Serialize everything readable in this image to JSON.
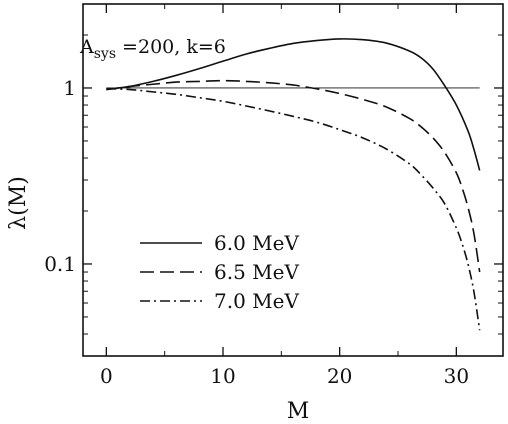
{
  "chart_data": {
    "type": "line",
    "annotation_parts": {
      "main": "A",
      "sub": "sys",
      "rest": " =200, k=6"
    },
    "xlabel": "M",
    "ylabel": "λ(M)",
    "xscale": "linear",
    "yscale": "log",
    "xlim": [
      -2,
      34
    ],
    "ylim": [
      0.03,
      3
    ],
    "xticks": [
      0,
      10,
      20,
      30
    ],
    "xtick_labels": [
      "0",
      "10",
      "20",
      "30"
    ],
    "xminor": [
      5,
      15,
      25
    ],
    "yticks": [
      0.1,
      1
    ],
    "ytick_labels": [
      "0.1",
      "1"
    ],
    "grid": false,
    "legend_position": "bottom-left",
    "reference_line": {
      "y": 1,
      "x_range": [
        0,
        32
      ]
    },
    "series": [
      {
        "name": "6.0 MeV",
        "dash": "solid",
        "x": [
          0,
          2,
          4,
          6,
          8,
          10,
          12,
          14,
          16,
          18,
          20,
          22,
          24,
          26,
          27,
          28,
          29,
          30,
          31,
          31.5,
          32
        ],
        "values": [
          0.98,
          1.02,
          1.09,
          1.18,
          1.29,
          1.42,
          1.56,
          1.68,
          1.79,
          1.86,
          1.9,
          1.88,
          1.8,
          1.62,
          1.48,
          1.28,
          1.03,
          0.8,
          0.57,
          0.45,
          0.34
        ]
      },
      {
        "name": "6.5 MeV",
        "dash": "dashed",
        "x": [
          0,
          2,
          4,
          6,
          8,
          10,
          12,
          14,
          16,
          18,
          20,
          22,
          24,
          26,
          27,
          28,
          29,
          30,
          30.5,
          31,
          31.5,
          32
        ],
        "values": [
          0.98,
          1.02,
          1.05,
          1.08,
          1.09,
          1.1,
          1.09,
          1.07,
          1.04,
          0.99,
          0.93,
          0.86,
          0.78,
          0.67,
          0.6,
          0.52,
          0.43,
          0.33,
          0.27,
          0.21,
          0.15,
          0.09
        ]
      },
      {
        "name": "7.0 MeV",
        "dash": "dashdot",
        "x": [
          0,
          2,
          4,
          6,
          8,
          10,
          12,
          14,
          16,
          18,
          20,
          22,
          24,
          26,
          27,
          28,
          29,
          30,
          30.5,
          31,
          31.5,
          32
        ],
        "values": [
          0.99,
          0.98,
          0.95,
          0.92,
          0.88,
          0.84,
          0.79,
          0.74,
          0.69,
          0.64,
          0.58,
          0.52,
          0.45,
          0.37,
          0.32,
          0.27,
          0.22,
          0.16,
          0.13,
          0.1,
          0.07,
          0.042
        ]
      }
    ]
  }
}
